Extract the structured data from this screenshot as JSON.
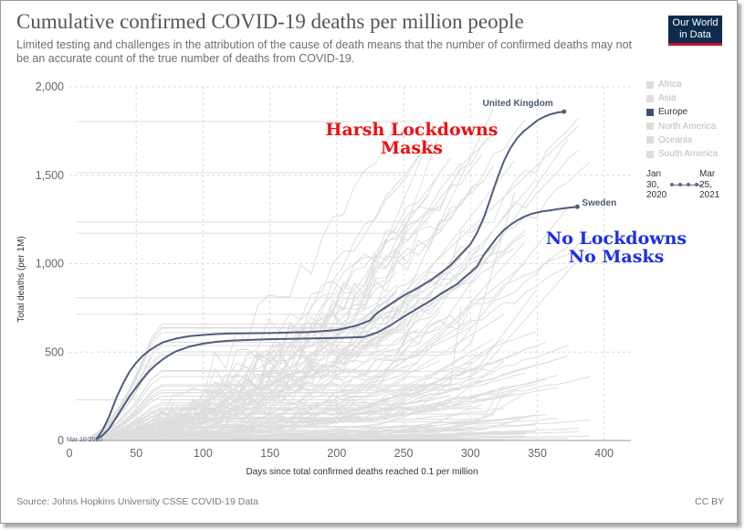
{
  "header": {
    "title": "Cumulative confirmed COVID-19 deaths per million people",
    "subtitle": "Limited testing and challenges in the attribution of the cause of death means that the number of confirmed deaths may not be an accurate count of the true number of deaths from COVID-19.",
    "logo_line1": "Our World",
    "logo_line2": "in Data"
  },
  "footer": {
    "source": "Source: Johns Hopkins University CSSE COVID-19 Data",
    "license": "CC BY"
  },
  "legend": {
    "items": [
      {
        "label": "Africa",
        "active": false
      },
      {
        "label": "Asia",
        "active": false
      },
      {
        "label": "Europe",
        "active": true
      },
      {
        "label": "North America",
        "active": false
      },
      {
        "label": "Oceania",
        "active": false
      },
      {
        "label": "South America",
        "active": false
      }
    ]
  },
  "timeline": {
    "start": "Jan 30, 2020",
    "end": "Mar 25, 2021"
  },
  "annotations": {
    "red_line1": "Harsh Lockdowns",
    "red_line2": "Masks",
    "blue_line1": "No Lockdowns",
    "blue_line2": "No Masks"
  },
  "colors": {
    "highlight": "#4f5d7e",
    "background_lines": "#dddddd",
    "annotation_red": "#ee1111",
    "annotation_blue": "#1f2ee6"
  },
  "chart_data": {
    "type": "line",
    "xlabel": "Days since total confirmed deaths reached 0.1 per million",
    "ylabel": "Total deaths (per 1M)",
    "xlim": [
      0,
      420
    ],
    "ylim": [
      0,
      2000
    ],
    "x_ticks": [
      0,
      50,
      100,
      150,
      200,
      250,
      300,
      350,
      400
    ],
    "y_ticks": [
      0,
      500,
      1000,
      1500,
      2000
    ],
    "y_tick_labels": [
      "0",
      "500",
      "1,000",
      "1,500",
      "2,000"
    ],
    "grid": true,
    "start_label": "Mar 10 2020",
    "series": [
      {
        "name": "United Kingdom",
        "x": [
          20,
          25,
          30,
          35,
          40,
          45,
          50,
          55,
          60,
          65,
          70,
          75,
          80,
          90,
          100,
          110,
          120,
          150,
          180,
          200,
          215,
          225,
          230,
          240,
          250,
          260,
          270,
          280,
          285,
          290,
          295,
          300,
          305,
          310,
          315,
          320,
          325,
          330,
          335,
          340,
          345,
          350,
          355,
          360,
          365,
          370
        ],
        "y": [
          5,
          60,
          140,
          240,
          320,
          390,
          440,
          480,
          510,
          535,
          555,
          567,
          577,
          590,
          597,
          602,
          605,
          608,
          614,
          625,
          650,
          680,
          720,
          770,
          820,
          860,
          905,
          960,
          990,
          1030,
          1070,
          1110,
          1175,
          1260,
          1370,
          1480,
          1580,
          1655,
          1710,
          1750,
          1780,
          1810,
          1830,
          1845,
          1855,
          1860
        ]
      },
      {
        "name": "Sweden",
        "x": [
          20,
          25,
          30,
          35,
          40,
          45,
          50,
          55,
          60,
          65,
          70,
          75,
          80,
          90,
          100,
          110,
          120,
          150,
          180,
          200,
          220,
          230,
          240,
          250,
          260,
          270,
          280,
          290,
          295,
          300,
          305,
          310,
          315,
          320,
          325,
          330,
          335,
          340,
          345,
          350,
          355,
          360,
          365,
          370,
          375,
          380
        ],
        "y": [
          5,
          30,
          70,
          130,
          190,
          250,
          300,
          350,
          395,
          430,
          460,
          485,
          505,
          532,
          548,
          558,
          565,
          573,
          577,
          580,
          585,
          610,
          650,
          700,
          745,
          790,
          840,
          885,
          920,
          950,
          985,
          1050,
          1100,
          1150,
          1190,
          1220,
          1245,
          1265,
          1280,
          1290,
          1297,
          1302,
          1308,
          1313,
          1318,
          1322
        ]
      }
    ]
  }
}
